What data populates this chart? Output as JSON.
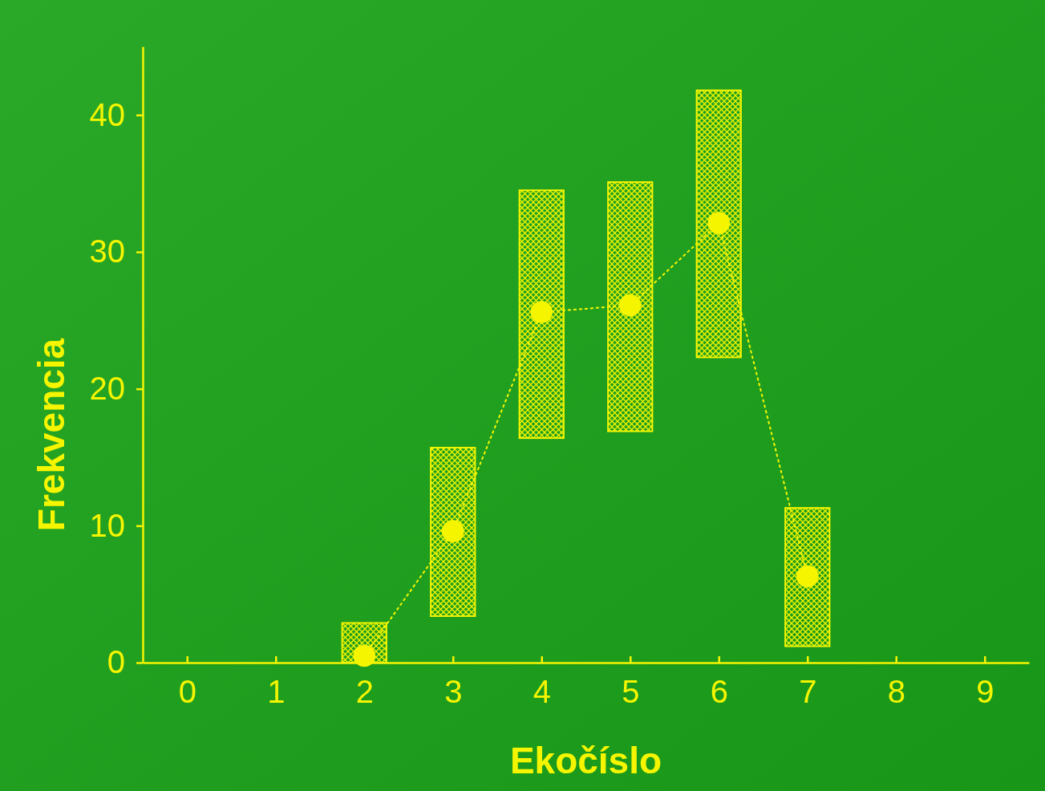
{
  "chart_data": {
    "type": "bar",
    "xlabel": "Ekočíslo",
    "ylabel": "Frekvencia",
    "x": [
      2,
      3,
      4,
      5,
      6,
      7
    ],
    "series": [
      {
        "color": "#f5f500",
        "values": [
          2.9,
          12.3,
          18.1,
          18.2,
          19.5,
          10.1
        ],
        "base": [
          0,
          3.4,
          16.4,
          16.9,
          22.3,
          1.2
        ]
      },
      {
        "type": "line",
        "color": "#f5f500",
        "marker": "circle",
        "line_style": "dotted",
        "values": [
          0.5,
          9.6,
          25.6,
          26.1,
          32.1,
          6.3
        ]
      }
    ],
    "xlim": [
      -0.5,
      9.5
    ],
    "xticks": [
      0,
      1,
      2,
      3,
      4,
      5,
      6,
      7,
      8,
      9
    ],
    "ylim": [
      0,
      45
    ],
    "yticks": [
      0,
      10,
      20,
      30,
      40
    ],
    "grid": false
  }
}
